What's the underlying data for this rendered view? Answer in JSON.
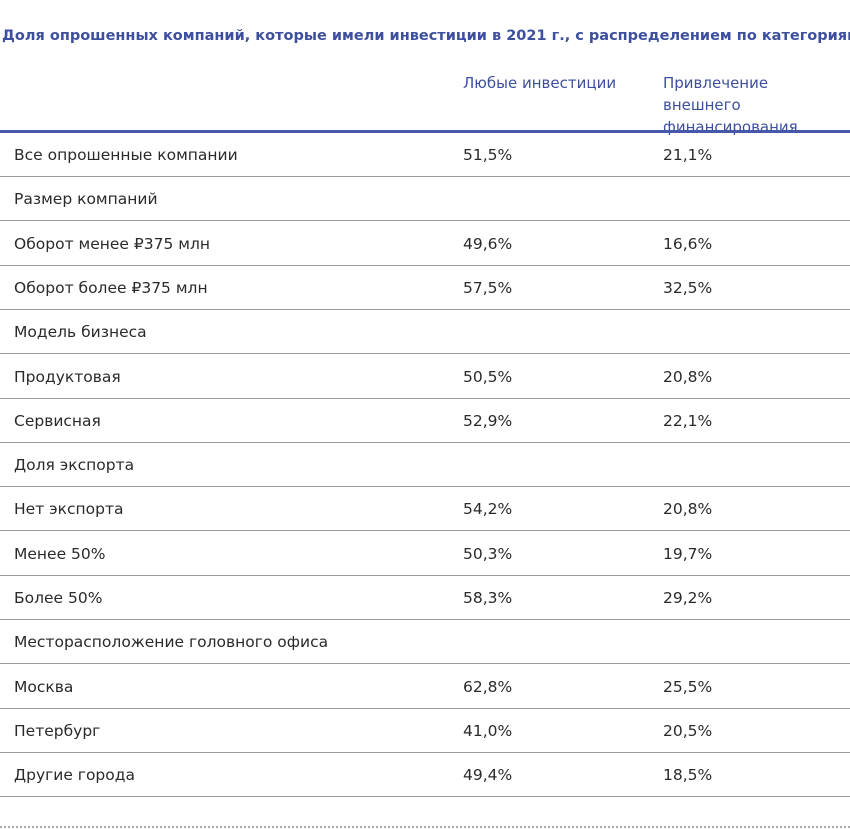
{
  "header": {
    "title": "Доля опрошенных компаний, которые имели инвестиции в 2021 г., с распределением по категориям",
    "columns": [
      "Любые инвестиции",
      "Привлечение внешнего финансирования"
    ]
  },
  "table": {
    "rows": [
      {
        "label": "Все опрошенные компании",
        "values": [
          "51,5%",
          "21,1%"
        ]
      },
      {
        "label": "Размер компаний"
      },
      {
        "label": "Оборот менее ₽375 млн",
        "values": [
          "49,6%",
          "16,6%"
        ]
      },
      {
        "label": "Оборот более ₽375 млн",
        "values": [
          "57,5%",
          "32,5%"
        ]
      },
      {
        "label": "Модель бизнеса"
      },
      {
        "label": "Продуктовая",
        "values": [
          "50,5%",
          "20,8%"
        ]
      },
      {
        "label": "Сервисная",
        "values": [
          "52,9%",
          "22,1%"
        ]
      },
      {
        "label": "Доля экспорта"
      },
      {
        "label": "Нет экспорта",
        "values": [
          "54,2%",
          "20,8%"
        ]
      },
      {
        "label": "Менее 50%",
        "values": [
          "50,3%",
          "19,7%"
        ]
      },
      {
        "label": "Более 50%",
        "values": [
          "58,3%",
          "29,2%"
        ]
      },
      {
        "label": "Месторасположение головного офиса"
      },
      {
        "label": "Москва",
        "values": [
          "62,8%",
          "25,5%"
        ]
      },
      {
        "label": "Петербург",
        "values": [
          "41,0%",
          "20,5%"
        ]
      },
      {
        "label": "Другие города",
        "values": [
          "49,4%",
          "18,5%"
        ]
      }
    ]
  }
}
